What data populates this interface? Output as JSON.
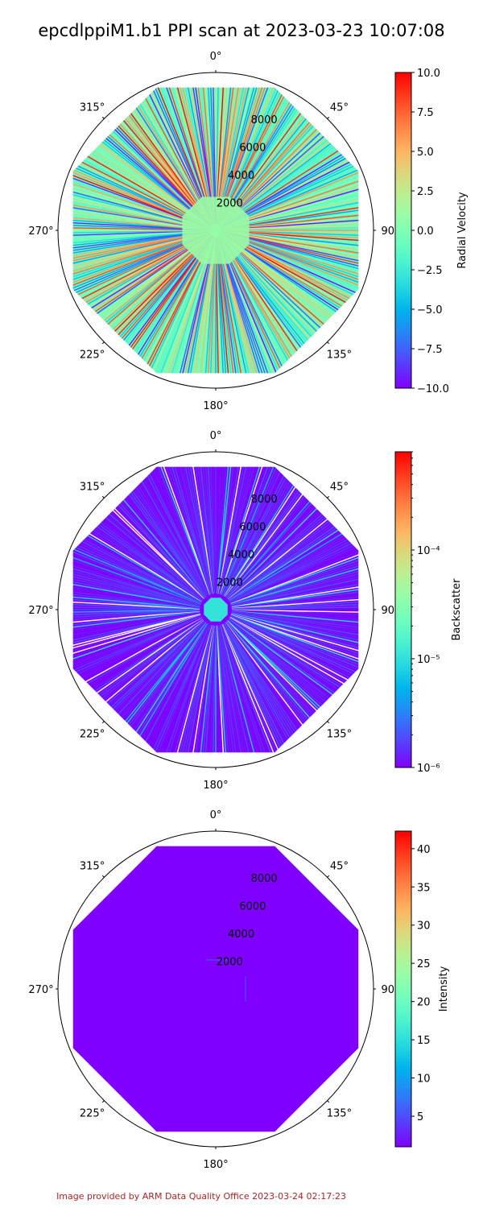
{
  "figure": {
    "title": "epcdlppiM1.b1 PPI scan at 2023-03-23 10:07:08",
    "footer": "Image provided by ARM Data Quality Office 2023-03-24 02:17:23"
  },
  "chart_data": [
    {
      "type": "heatmap",
      "projection": "polar",
      "theta_zero": "north",
      "theta_direction": "clockwise",
      "angle_ticks": [
        "0°",
        "45°",
        "90°",
        "135°",
        "180°",
        "225°",
        "270°",
        "315°"
      ],
      "radial_ticks": [
        "2000",
        "4000",
        "6000",
        "8000"
      ],
      "radial_tick_values": [
        2000,
        4000,
        6000,
        8000
      ],
      "rmax": 10500,
      "data_extent_range": 9500,
      "colorbar_label": "Radial Velocity",
      "colorbar_scale": "linear",
      "clim": [
        -10,
        10
      ],
      "colorbar_ticks": [
        "10.0",
        "7.5",
        "5.0",
        "2.5",
        "0.0",
        "−2.5",
        "−5.0",
        "−7.5",
        "−10.0"
      ],
      "colorbar_tick_values": [
        10,
        7.5,
        5,
        2.5,
        0,
        -2.5,
        -5,
        -7.5,
        -10
      ],
      "colormap": "rainbow",
      "field_description": "noisy radial velocity across all gates, values spanning full range"
    },
    {
      "type": "heatmap",
      "projection": "polar",
      "theta_zero": "north",
      "theta_direction": "clockwise",
      "angle_ticks": [
        "0°",
        "45°",
        "90°",
        "135°",
        "180°",
        "225°",
        "270°",
        "315°"
      ],
      "radial_ticks": [
        "2000",
        "4000",
        "6000",
        "8000"
      ],
      "radial_tick_values": [
        2000,
        4000,
        6000,
        8000
      ],
      "rmax": 10500,
      "data_extent_range": 9500,
      "colorbar_label": "Backscatter",
      "colorbar_scale": "log",
      "clim": [
        1e-06,
        0.0008
      ],
      "colorbar_ticks": [
        "10⁻⁶",
        "10⁻⁵",
        "10⁻⁴"
      ],
      "colorbar_tick_values": [
        1e-06,
        1e-05,
        0.0001
      ],
      "colormap": "rainbow",
      "field_description": "near-minimum backscatter, higher values near the center"
    },
    {
      "type": "heatmap",
      "projection": "polar",
      "theta_zero": "north",
      "theta_direction": "clockwise",
      "angle_ticks": [
        "0°",
        "45°",
        "90°",
        "135°",
        "180°",
        "225°",
        "270°",
        "315°"
      ],
      "radial_ticks": [
        "2000",
        "4000",
        "6000",
        "8000"
      ],
      "radial_tick_values": [
        2000,
        4000,
        6000,
        8000
      ],
      "rmax": 10500,
      "data_extent_range": 9500,
      "colorbar_label": "Intensity",
      "colorbar_scale": "linear",
      "clim": [
        1,
        42.3
      ],
      "colorbar_ticks": [
        "40",
        "35",
        "30",
        "25",
        "20",
        "15",
        "10",
        "5"
      ],
      "colorbar_tick_values": [
        40,
        35,
        30,
        25,
        20,
        15,
        10,
        5
      ],
      "colormap": "rainbow",
      "field_description": "uniform low intensity (~1) across the scan"
    }
  ]
}
